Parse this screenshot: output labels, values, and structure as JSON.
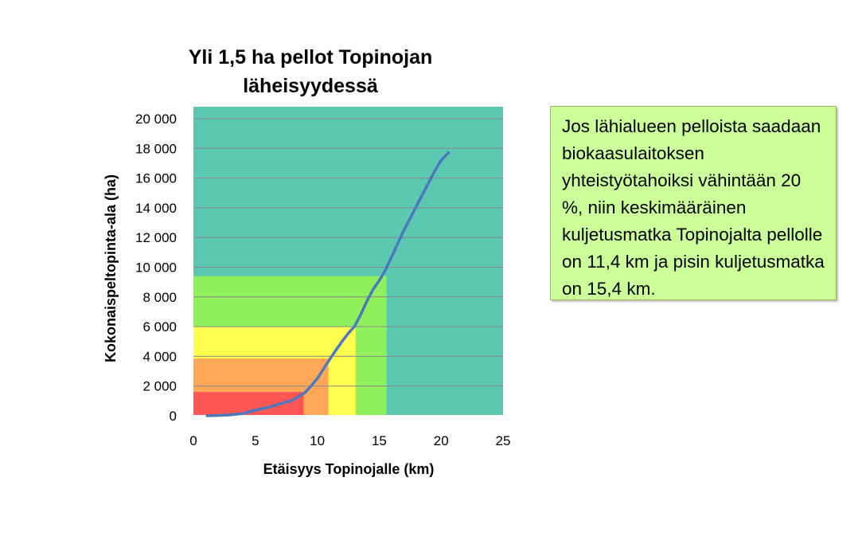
{
  "chart_data": {
    "type": "area",
    "title": "Yli 1,5 ha pellot Topinojan läheisyydessä",
    "xlabel": "Etäisyys Topinojalle (km)",
    "ylabel": "Kokonaispeltopinta-ala (ha)",
    "xlim": [
      0,
      25
    ],
    "ylim": [
      0,
      20000
    ],
    "x_ticks": [
      "0",
      "5",
      "10",
      "15",
      "20",
      "25"
    ],
    "y_ticks": [
      "0",
      "2 000",
      "4 000",
      "6 000",
      "8 000",
      "10 000",
      "12 000",
      "14 000",
      "16 000",
      "18 000",
      "20 000"
    ],
    "grid": true,
    "background_color": "#5bc8b0",
    "zones": [
      {
        "x_max": 15.6,
        "y_max": 9400,
        "color": "#8ef05a"
      },
      {
        "x_max": 13.1,
        "y_max": 6000,
        "color": "#ffff4d"
      },
      {
        "x_max": 10.9,
        "y_max": 3850,
        "color": "#ffa958"
      },
      {
        "x_max": 8.9,
        "y_max": 1600,
        "color": "#ff5555"
      }
    ],
    "series": [
      {
        "color": "#4c78bf",
        "x": [
          1.1,
          2,
          3,
          4,
          5,
          6,
          7,
          8,
          9,
          9.5,
          10,
          10.5,
          11,
          11.5,
          12,
          12.5,
          13,
          13.5,
          14,
          14.5,
          15,
          15.5,
          16,
          16.5,
          17,
          17.5,
          18,
          18.5,
          19,
          19.5,
          20,
          20.6
        ],
        "y": [
          0,
          20,
          60,
          150,
          380,
          560,
          800,
          1050,
          1550,
          2000,
          2500,
          3150,
          3800,
          4400,
          5000,
          5550,
          6000,
          6800,
          7700,
          8500,
          9100,
          9800,
          10700,
          11600,
          12500,
          13300,
          14100,
          14900,
          15700,
          16500,
          17200,
          17700
        ]
      }
    ]
  },
  "note": {
    "text": "Jos lähialueen pelloista saadaan biokaasulaitoksen yhteistyötahoiksi vähintään 20 %, niin keskimääräinen kuljetusmatka Topinojalta pellolle on 11,4 km ja pisin kuljetusmatka on 15,4 km."
  }
}
